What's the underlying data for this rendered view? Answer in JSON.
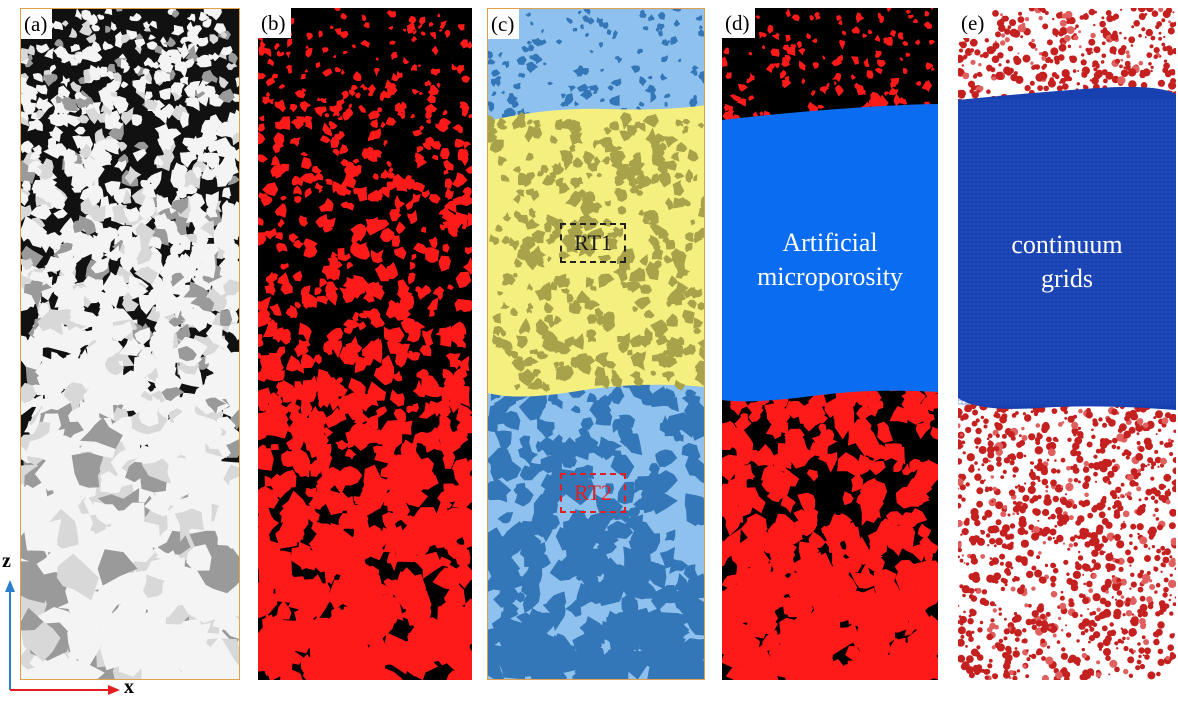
{
  "panels": [
    {
      "tag": "(a)"
    },
    {
      "tag": "(b)"
    },
    {
      "tag": "(c)",
      "zones": [
        "RT1",
        "RT2"
      ]
    },
    {
      "tag": "(d)",
      "label_line1": "Artificial",
      "label_line2": "microporosity"
    },
    {
      "tag": "(e)",
      "label_line1": "continuum",
      "label_line2": "grids"
    }
  ],
  "axes": {
    "z_label": "z",
    "x_label": "x"
  },
  "colors": {
    "pore_red": "#ff1a1a",
    "light_blue": "#8ec1ee",
    "dark_blue": "#3477b8",
    "yellow": "#f5ef80",
    "olive": "#a8a34a",
    "micro_blue": "#0a6cf0",
    "grid_blue": "#1740b0",
    "sphere_red": "#c52020"
  }
}
